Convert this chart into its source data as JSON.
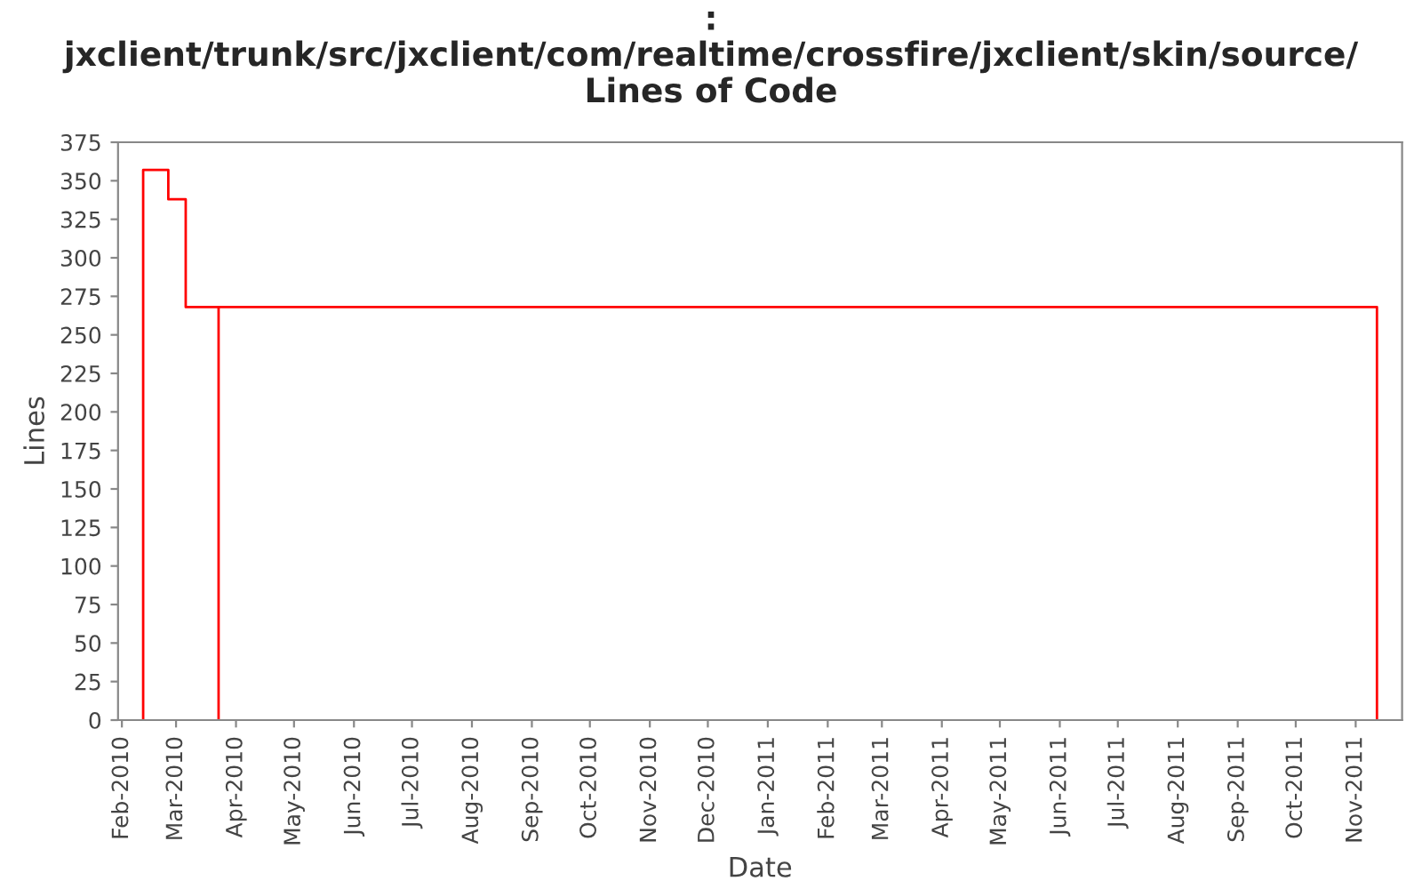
{
  "chart_data": {
    "type": "step",
    "title": ":\njxclient/trunk/src/jxclient/com/realtime/crossfire/jxclient/skin/source/\nLines of Code",
    "xlabel": "Date",
    "ylabel": "Lines",
    "series": [
      {
        "color": "#ff0000",
        "x": [
          "2010-02-12",
          "2010-02-12",
          "2010-02-25",
          "2010-03-06",
          "2010-03-23",
          "2010-03-23",
          "2011-11-12",
          "2011-11-12"
        ],
        "values": [
          0,
          357,
          338,
          268,
          0,
          268,
          268,
          0
        ]
      }
    ],
    "xlim": [
      "2010-01-30",
      "2011-11-25"
    ],
    "xticks": [
      {
        "value": "2010-02-01",
        "label": "Feb-2010"
      },
      {
        "value": "2010-03-01",
        "label": "Mar-2010"
      },
      {
        "value": "2010-04-01",
        "label": "Apr-2010"
      },
      {
        "value": "2010-05-01",
        "label": "May-2010"
      },
      {
        "value": "2010-06-01",
        "label": "Jun-2010"
      },
      {
        "value": "2010-07-01",
        "label": "Jul-2010"
      },
      {
        "value": "2010-08-01",
        "label": "Aug-2010"
      },
      {
        "value": "2010-09-01",
        "label": "Sep-2010"
      },
      {
        "value": "2010-10-01",
        "label": "Oct-2010"
      },
      {
        "value": "2010-11-01",
        "label": "Nov-2010"
      },
      {
        "value": "2010-12-01",
        "label": "Dec-2010"
      },
      {
        "value": "2011-01-01",
        "label": "Jan-2011"
      },
      {
        "value": "2011-02-01",
        "label": "Feb-2011"
      },
      {
        "value": "2011-03-01",
        "label": "Mar-2011"
      },
      {
        "value": "2011-04-01",
        "label": "Apr-2011"
      },
      {
        "value": "2011-05-01",
        "label": "May-2011"
      },
      {
        "value": "2011-06-01",
        "label": "Jun-2011"
      },
      {
        "value": "2011-07-01",
        "label": "Jul-2011"
      },
      {
        "value": "2011-08-01",
        "label": "Aug-2011"
      },
      {
        "value": "2011-09-01",
        "label": "Sep-2011"
      },
      {
        "value": "2011-10-01",
        "label": "Oct-2011"
      },
      {
        "value": "2011-11-01",
        "label": "Nov-2011"
      }
    ],
    "ylim": [
      0,
      375
    ],
    "yticks": [
      0,
      25,
      50,
      75,
      100,
      125,
      150,
      175,
      200,
      225,
      250,
      275,
      300,
      325,
      350,
      375
    ]
  }
}
